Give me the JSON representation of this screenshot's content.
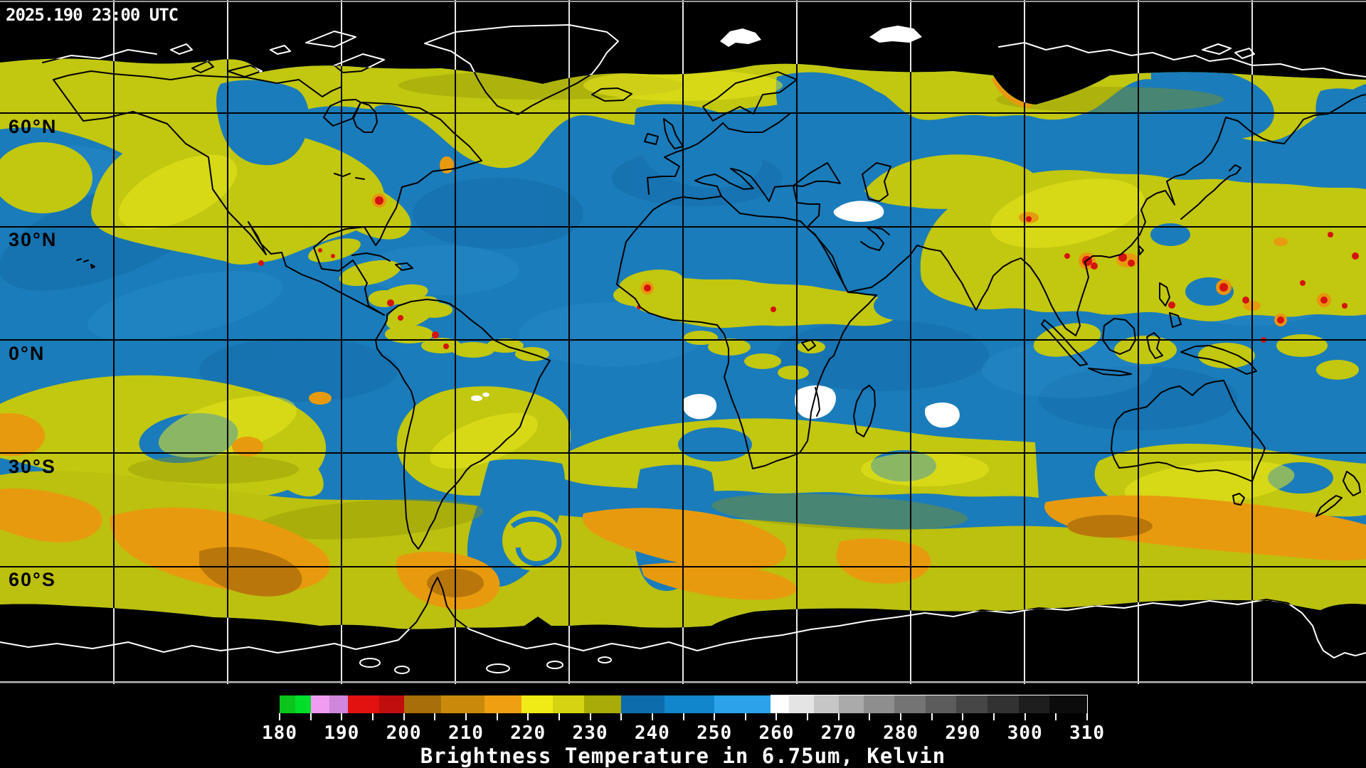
{
  "header": {
    "timestamp": "2025.190 23:00 UTC"
  },
  "map": {
    "latitude_labels": [
      "60°N",
      "30°N",
      "0°N",
      "30°S",
      "60°S"
    ],
    "latitude_grid_spacing_deg": 30,
    "longitude_grid_spacing_deg": 30
  },
  "colorbar": {
    "title": "Brightness Temperature in 6.75um, Kelvin",
    "min": 180,
    "max": 310,
    "tick_interval_minor": 5,
    "tick_interval_labeled": 10,
    "tick_labels": [
      "180",
      "190",
      "200",
      "210",
      "220",
      "230",
      "240",
      "250",
      "260",
      "270",
      "280",
      "290",
      "300",
      "310"
    ],
    "segments": [
      {
        "from": 180,
        "to": 182.5,
        "color": "#0bc41c"
      },
      {
        "from": 182.5,
        "to": 185,
        "color": "#00de2a"
      },
      {
        "from": 185,
        "to": 188,
        "color": "#ef9cf2"
      },
      {
        "from": 188,
        "to": 191,
        "color": "#cf86dc"
      },
      {
        "from": 191,
        "to": 196,
        "color": "#e11210"
      },
      {
        "from": 196,
        "to": 200,
        "color": "#c00d0e"
      },
      {
        "from": 200,
        "to": 206,
        "color": "#a76e09"
      },
      {
        "from": 206,
        "to": 213,
        "color": "#c98a0c"
      },
      {
        "from": 213,
        "to": 219,
        "color": "#ef9f12"
      },
      {
        "from": 219,
        "to": 224,
        "color": "#f0ea16"
      },
      {
        "from": 224,
        "to": 229,
        "color": "#d6d412"
      },
      {
        "from": 229,
        "to": 235,
        "color": "#a8ab08"
      },
      {
        "from": 235,
        "to": 242,
        "color": "#0c6cac"
      },
      {
        "from": 242,
        "to": 250,
        "color": "#1286cc"
      },
      {
        "from": 250,
        "to": 259,
        "color": "#2ba2ea"
      },
      {
        "from": 259,
        "to": 262,
        "color": "#ffffff"
      },
      {
        "from": 262,
        "to": 266,
        "color": "#e4e4e4"
      },
      {
        "from": 266,
        "to": 270,
        "color": "#c6c6c6"
      },
      {
        "from": 270,
        "to": 274,
        "color": "#aaaaaa"
      },
      {
        "from": 274,
        "to": 279,
        "color": "#8e8e8e"
      },
      {
        "from": 279,
        "to": 284,
        "color": "#747474"
      },
      {
        "from": 284,
        "to": 289,
        "color": "#5c5c5c"
      },
      {
        "from": 289,
        "to": 294,
        "color": "#464646"
      },
      {
        "from": 294,
        "to": 299,
        "color": "#323232"
      },
      {
        "from": 299,
        "to": 304,
        "color": "#1e1e1e"
      },
      {
        "from": 304,
        "to": 310,
        "color": "#0c0c0c"
      }
    ],
    "gray_outline_from": 259
  },
  "colors": {
    "background": "#000000",
    "ocean_dry_blue": "#1a7cba",
    "moist_yellow": "#c2c70f",
    "cold_cloud_orange": "#e89a0e",
    "deep_convection_red": "#d51310",
    "warm_surface_white": "#ffffff",
    "coastline_on_data": "#000000",
    "coastline_on_space": "#ffffff"
  }
}
